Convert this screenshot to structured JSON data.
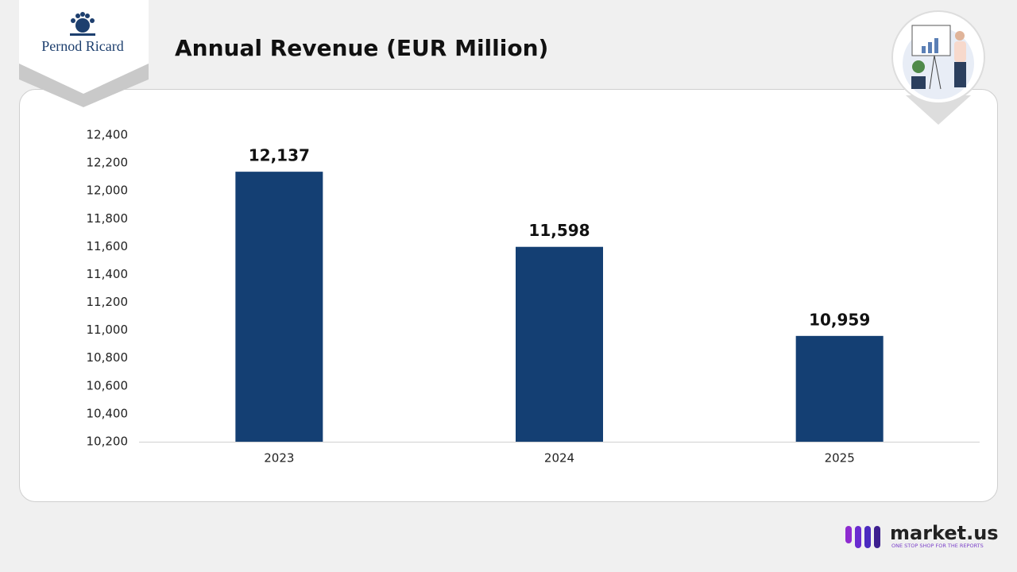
{
  "brand": {
    "logo": "Pernod Ricard",
    "footer_name": "market.us",
    "footer_tagline": "ONE STOP SHOP FOR THE REPORTS"
  },
  "chart_data": {
    "type": "bar",
    "title": "Annual Revenue (EUR Million)",
    "categories": [
      "2023",
      "2024",
      "2025"
    ],
    "values": [
      12137,
      11598,
      10959
    ],
    "value_labels": [
      "12,137",
      "11,598",
      "10,959"
    ],
    "color": "#143f73",
    "ylim": [
      10200,
      12400
    ],
    "yticks": [
      {
        "value": 10200,
        "label": "10,200"
      },
      {
        "value": 10400,
        "label": "10,400"
      },
      {
        "value": 10600,
        "label": "10,600"
      },
      {
        "value": 10800,
        "label": "10,800"
      },
      {
        "value": 11000,
        "label": "11,000"
      },
      {
        "value": 11200,
        "label": "11,200"
      },
      {
        "value": 11400,
        "label": "11,400"
      },
      {
        "value": 11600,
        "label": "11,600"
      },
      {
        "value": 11800,
        "label": "11,800"
      },
      {
        "value": 12000,
        "label": "12,000"
      },
      {
        "value": 12200,
        "label": "12,200"
      },
      {
        "value": 12400,
        "label": "12,400"
      }
    ],
    "grid": false
  }
}
